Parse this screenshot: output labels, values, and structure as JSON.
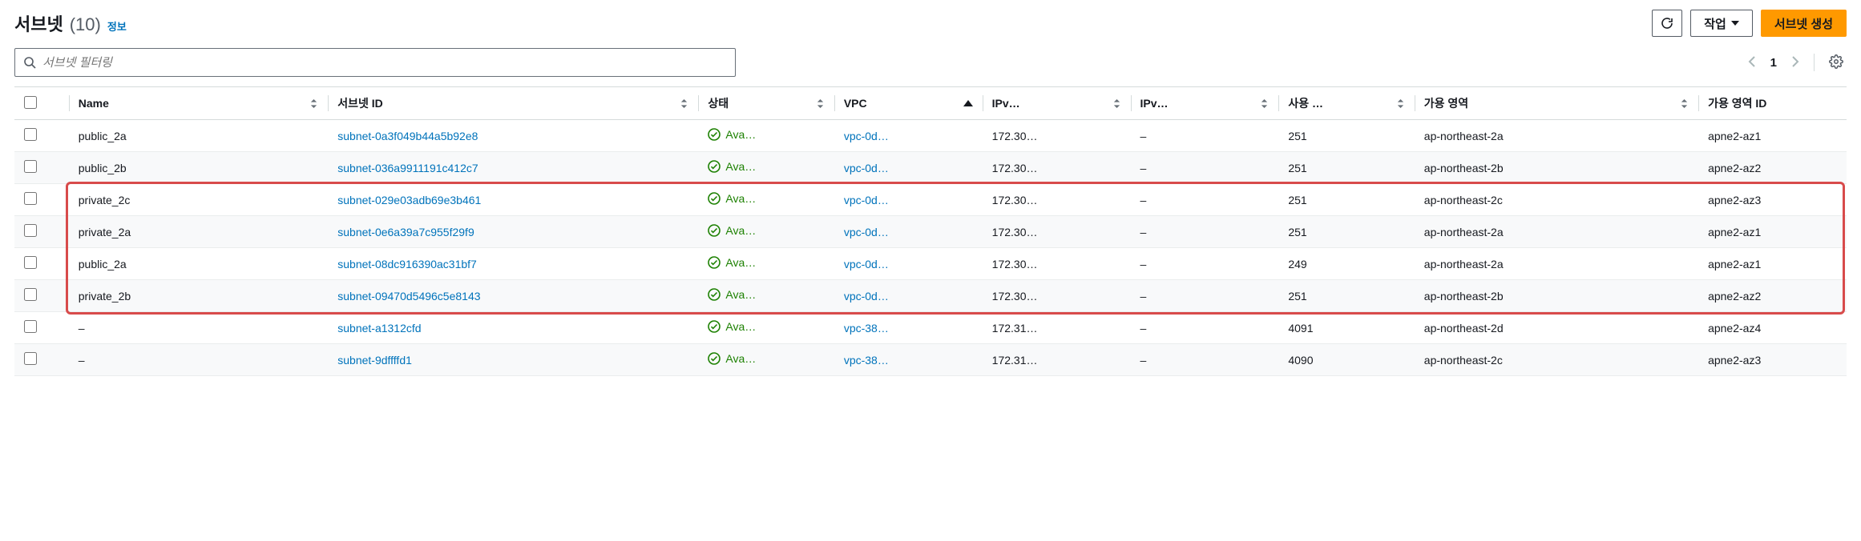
{
  "header": {
    "title": "서브넷",
    "count": "(10)",
    "info_link": "정보",
    "refresh_aria": "새로 고침",
    "actions_label": "작업",
    "create_label": "서브넷 생성"
  },
  "searchbar": {
    "placeholder": "서브넷 필터링"
  },
  "pager": {
    "page": "1"
  },
  "columns": {
    "name": "Name",
    "subnet_id": "서브넷 ID",
    "state": "상태",
    "vpc": "VPC",
    "ipv4": "IPv…",
    "ipv6": "IPv…",
    "available": "사용 …",
    "az": "가용 영역",
    "az_id": "가용 영역 ID"
  },
  "rows": [
    {
      "name": "public_2a",
      "subnet_id": "subnet-0a3f049b44a5b92e8",
      "state": "Ava…",
      "vpc": "vpc-0d…",
      "ipv4": "172.30…",
      "ipv6": "–",
      "available": "251",
      "az": "ap-northeast-2a",
      "az_id": "apne2-az1"
    },
    {
      "name": "public_2b",
      "subnet_id": "subnet-036a9911191c412c7",
      "state": "Ava…",
      "vpc": "vpc-0d…",
      "ipv4": "172.30…",
      "ipv6": "–",
      "available": "251",
      "az": "ap-northeast-2b",
      "az_id": "apne2-az2"
    },
    {
      "name": "private_2c",
      "subnet_id": "subnet-029e03adb69e3b461",
      "state": "Ava…",
      "vpc": "vpc-0d…",
      "ipv4": "172.30…",
      "ipv6": "–",
      "available": "251",
      "az": "ap-northeast-2c",
      "az_id": "apne2-az3"
    },
    {
      "name": "private_2a",
      "subnet_id": "subnet-0e6a39a7c955f29f9",
      "state": "Ava…",
      "vpc": "vpc-0d…",
      "ipv4": "172.30…",
      "ipv6": "–",
      "available": "251",
      "az": "ap-northeast-2a",
      "az_id": "apne2-az1"
    },
    {
      "name": "public_2a",
      "subnet_id": "subnet-08dc916390ac31bf7",
      "state": "Ava…",
      "vpc": "vpc-0d…",
      "ipv4": "172.30…",
      "ipv6": "–",
      "available": "249",
      "az": "ap-northeast-2a",
      "az_id": "apne2-az1"
    },
    {
      "name": "private_2b",
      "subnet_id": "subnet-09470d5496c5e8143",
      "state": "Ava…",
      "vpc": "vpc-0d…",
      "ipv4": "172.30…",
      "ipv6": "–",
      "available": "251",
      "az": "ap-northeast-2b",
      "az_id": "apne2-az2"
    },
    {
      "name": "–",
      "subnet_id": "subnet-a1312cfd",
      "state": "Ava…",
      "vpc": "vpc-38…",
      "ipv4": "172.31…",
      "ipv6": "–",
      "available": "4091",
      "az": "ap-northeast-2d",
      "az_id": "apne2-az4"
    },
    {
      "name": "–",
      "subnet_id": "subnet-9dffffd1",
      "state": "Ava…",
      "vpc": "vpc-38…",
      "ipv4": "172.31…",
      "ipv6": "–",
      "available": "4090",
      "az": "ap-northeast-2c",
      "az_id": "apne2-az3"
    }
  ],
  "highlight": {
    "row_start": 2,
    "row_end": 5,
    "col_start": 1
  },
  "colors": {
    "link": "#0073bb",
    "primary": "#ff9900",
    "success": "#1d8102",
    "border": "#d5dbdb",
    "highlight_border": "#d84b4b"
  }
}
